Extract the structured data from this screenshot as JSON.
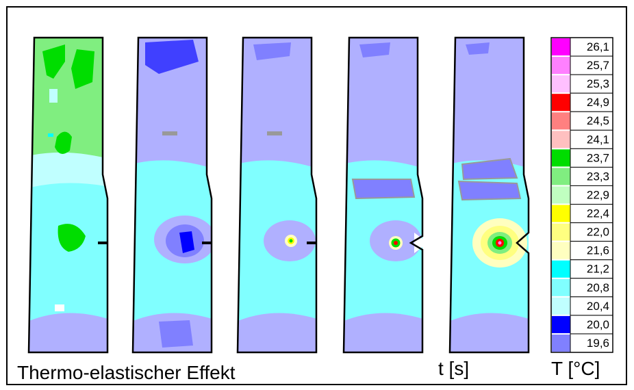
{
  "caption": "Thermo-elastischer Effekt",
  "time_label": "t [s]",
  "legend": {
    "title": "T [°C]",
    "items": [
      {
        "label": "26,1",
        "color": "#ff00ff"
      },
      {
        "label": "25,7",
        "color": "#ff80ff"
      },
      {
        "label": "25,3",
        "color": "#ffc0ff"
      },
      {
        "label": "24,9",
        "color": "#ff0000"
      },
      {
        "label": "24,5",
        "color": "#ff8080"
      },
      {
        "label": "24,1",
        "color": "#ffc0c0"
      },
      {
        "label": "23,7",
        "color": "#00dd00"
      },
      {
        "label": "23,3",
        "color": "#80ee80"
      },
      {
        "label": "22,9",
        "color": "#c0ffc0"
      },
      {
        "label": "22,4",
        "color": "#ffff00"
      },
      {
        "label": "22,0",
        "color": "#ffff80"
      },
      {
        "label": "21,6",
        "color": "#ffffc0"
      },
      {
        "label": "21,2",
        "color": "#00ffff"
      },
      {
        "label": "20,8",
        "color": "#80ffff"
      },
      {
        "label": "20,4",
        "color": "#c0ffff"
      },
      {
        "label": "20,0",
        "color": "#0000ff"
      },
      {
        "label": "19,6",
        "color": "#8080ff"
      }
    ]
  }
}
